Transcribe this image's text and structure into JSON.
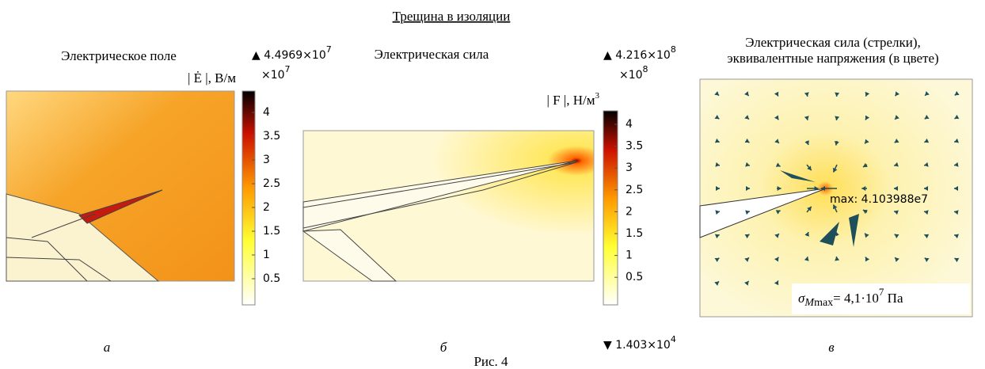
{
  "title": "Трещина в изоляции",
  "panels": [
    {
      "heading": [
        "Электрическое поле"
      ],
      "quantity": {
        "text": "| Ė |, В/м"
      },
      "colorbar": {
        "max_label": {
          "text": "▲ 4.4969×10",
          "exponent": "7"
        },
        "multiplier": {
          "text": "×10",
          "exponent": "7"
        },
        "ticks": [
          4,
          3.5,
          3,
          2.5,
          2,
          1.5,
          1,
          0.5
        ]
      },
      "caption": "а"
    },
    {
      "heading": [
        "Электрическая сила"
      ],
      "quantity": {
        "text": "| F |, Н/м",
        "exponent": "3"
      },
      "colorbar": {
        "max_label": {
          "text": "▲ 4.216×10",
          "exponent": "8"
        },
        "multiplier": {
          "text": "×10",
          "exponent": "8"
        },
        "ticks": [
          4,
          3.5,
          3,
          2.5,
          2,
          1.5,
          1,
          0.5
        ],
        "min_label": {
          "text": "▼ 1.403×10",
          "exponent": "4"
        }
      },
      "caption": "б"
    },
    {
      "heading": [
        "Электрическая сила (стрелки),",
        "эквивалентные напряжения (в цвете)"
      ],
      "annotation": "max: 4.103988e7",
      "stress_label": {
        "symbol": "σ",
        "subscript": "M",
        "subsubscript": "max",
        "text": "= 4,1·10",
        "exponent": "7",
        "unit": " Па"
      },
      "caption": "в"
    }
  ],
  "figure_caption": "Рис. 4"
}
